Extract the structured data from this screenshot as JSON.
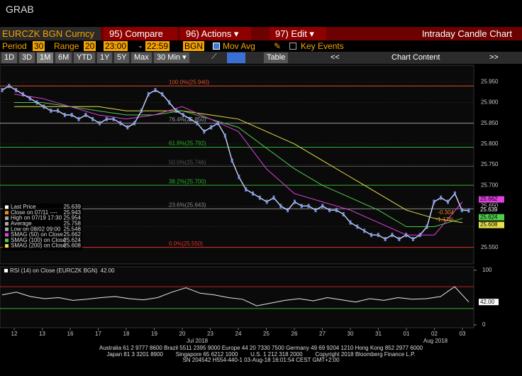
{
  "header": {
    "title": "GRAB"
  },
  "toolbar": {
    "security": "EURCZK BGN Curncy",
    "buttons": [
      "95) Compare",
      "96) Actions ▾",
      "97) Edit ▾"
    ],
    "view": "Intraday Candle Chart"
  },
  "settings": {
    "period_label": "Period",
    "period": "30",
    "range_label": "Range",
    "range": "20",
    "start": "23:00",
    "sep": "-",
    "end": "22:59",
    "source": "BGN",
    "mov_avg": "Mov Avg",
    "key_events": "Key Events"
  },
  "tabs": {
    "items": [
      "1D",
      "3D",
      "1M",
      "6M",
      "YTD",
      "1Y",
      "5Y",
      "Max",
      "30 Min ▾"
    ],
    "active": "1M",
    "table": "Table",
    "prev": "<<",
    "content": "Chart Content",
    "next": ">>"
  },
  "chart": {
    "ylim": [
      25.51,
      25.99
    ],
    "yticks": [
      {
        "value": 25.95,
        "label": "25.950"
      },
      {
        "value": 25.9,
        "label": "25.900"
      },
      {
        "value": 25.85,
        "label": "25.850"
      },
      {
        "value": 25.8,
        "label": "25.800"
      },
      {
        "value": 25.75,
        "label": "25.750"
      },
      {
        "value": 25.7,
        "label": "25.700"
      },
      {
        "value": 25.65,
        "label": "25.650"
      },
      {
        "value": 25.6,
        "label": "25.600"
      },
      {
        "value": 25.55,
        "label": "25.550"
      }
    ],
    "price_color": "#cfd8ff",
    "price": [
      25.93,
      25.94,
      25.93,
      25.92,
      25.91,
      25.9,
      25.89,
      25.88,
      25.88,
      25.87,
      25.87,
      25.86,
      25.87,
      25.86,
      25.85,
      25.86,
      25.86,
      25.85,
      25.84,
      25.85,
      25.88,
      25.92,
      25.93,
      25.92,
      25.9,
      25.88,
      25.87,
      25.86,
      25.85,
      25.83,
      25.84,
      25.85,
      25.82,
      25.76,
      25.72,
      25.69,
      25.68,
      25.67,
      25.66,
      25.67,
      25.65,
      25.64,
      25.66,
      25.65,
      25.65,
      25.64,
      25.65,
      25.64,
      25.64,
      25.63,
      25.61,
      25.6,
      25.59,
      25.58,
      25.58,
      25.57,
      25.58,
      25.57,
      25.58,
      25.57,
      25.58,
      25.6,
      25.66,
      25.67,
      25.66,
      25.68,
      25.64,
      25.639
    ],
    "sma": [
      {
        "name": "SMAG (50) on Close",
        "value_text": "25.662",
        "color": "#e040e0",
        "values": [
          25.92,
          25.91,
          25.89,
          25.87,
          25.86,
          25.87,
          25.89,
          25.86,
          25.83,
          25.74,
          25.68,
          25.66,
          25.64,
          25.61,
          25.58,
          25.58,
          25.66
        ]
      },
      {
        "name": "SMAG (100) on Close",
        "value_text": "25.624",
        "color": "#4ecb4e",
        "values": [
          25.9,
          25.9,
          25.89,
          25.88,
          25.87,
          25.87,
          25.88,
          25.86,
          25.84,
          25.79,
          25.74,
          25.7,
          25.67,
          25.64,
          25.6,
          25.6,
          25.62
        ]
      },
      {
        "name": "SMAG (200) on Close",
        "value_text": "25.608",
        "color": "#e8e04a",
        "values": [
          25.89,
          25.89,
          25.89,
          25.89,
          25.88,
          25.88,
          25.88,
          25.87,
          25.86,
          25.83,
          25.8,
          25.76,
          25.72,
          25.68,
          25.64,
          25.62,
          25.61
        ]
      }
    ],
    "legend": [
      {
        "label": "Last Price",
        "value": "25.639",
        "color": "#ffffff"
      },
      {
        "label": "Close on 07/11 ----",
        "value": "25.943",
        "color": "#f08a1c"
      },
      {
        "label": "High on 07/19 17:30",
        "value": "25.954",
        "color": "#aaaaaa"
      },
      {
        "label": "Average",
        "value": "25.758",
        "color": "#aaaaaa"
      },
      {
        "label": "Low on 08/02 09:00",
        "value": "25.548",
        "color": "#aaaaaa"
      }
    ],
    "fib": [
      {
        "label": "100.0%(25.940)",
        "value": 25.94,
        "color": "#e0502a"
      },
      {
        "label": "76.4%(25.850)",
        "value": 25.85,
        "color": "#999999"
      },
      {
        "label": "61.8%(25.792)",
        "value": 25.792,
        "color": "#2fae2f"
      },
      {
        "label": "50.0%(25.746)",
        "value": 25.746,
        "color": "#555555"
      },
      {
        "label": "38.2%(25.700)",
        "value": 25.7,
        "color": "#2fae2f"
      },
      {
        "label": "23.6%(25.643)",
        "value": 25.643,
        "color": "#888888"
      },
      {
        "label": "0.0%(25.550)",
        "value": 25.55,
        "color": "#e0302a"
      }
    ],
    "right_labels": [
      {
        "text": "25.662",
        "value": 25.662,
        "color": "#e040e0"
      },
      {
        "text": "25.639",
        "value": 25.639,
        "color": "#ffffff"
      },
      {
        "text": "25.624",
        "value": 25.624,
        "color": "#4ecb4e"
      },
      {
        "text": "25.608",
        "value": 25.608,
        "color": "#e8e04a"
      }
    ],
    "changes": [
      "-0.304",
      "-1.17%"
    ],
    "rsi": {
      "label": "RSI (14) on Close (EURCZK BGN)",
      "last": {
        "value": 42,
        "label": "42.00"
      },
      "ylim": [
        0,
        100
      ],
      "yticks": [
        100,
        0
      ],
      "upper": 70,
      "lower": 30,
      "values": [
        55,
        60,
        52,
        48,
        50,
        45,
        47,
        50,
        52,
        48,
        46,
        50,
        60,
        68,
        58,
        55,
        50,
        47,
        35,
        40,
        45,
        48,
        44,
        50,
        46,
        42,
        48,
        45,
        50,
        47,
        48,
        52,
        70,
        42
      ]
    },
    "x_labels": [
      "12",
      "13",
      "16",
      "17",
      "18",
      "19",
      "20",
      "23",
      "24",
      "25",
      "26",
      "27",
      "30",
      "31",
      "01",
      "02",
      "03"
    ],
    "months": [
      "Jul 2018",
      "Aug 2018"
    ]
  },
  "footer": [
    "Australia 61 2 9777 8600 Brazil 5511 2395 9000 Europe 44 20 7330 7500 Germany 49 69 9204 1210 Hong Kong 852 2977 6000",
    "Japan 81 3 3201 8900        Singapore 65 6212 1000        U.S. 1 212 318 2000        Copyright 2018 Bloomberg Finance L.P.",
    "SN 204542 H554-440-1 03-Aug-18 16:01:54 CEST GMT+2:00"
  ]
}
